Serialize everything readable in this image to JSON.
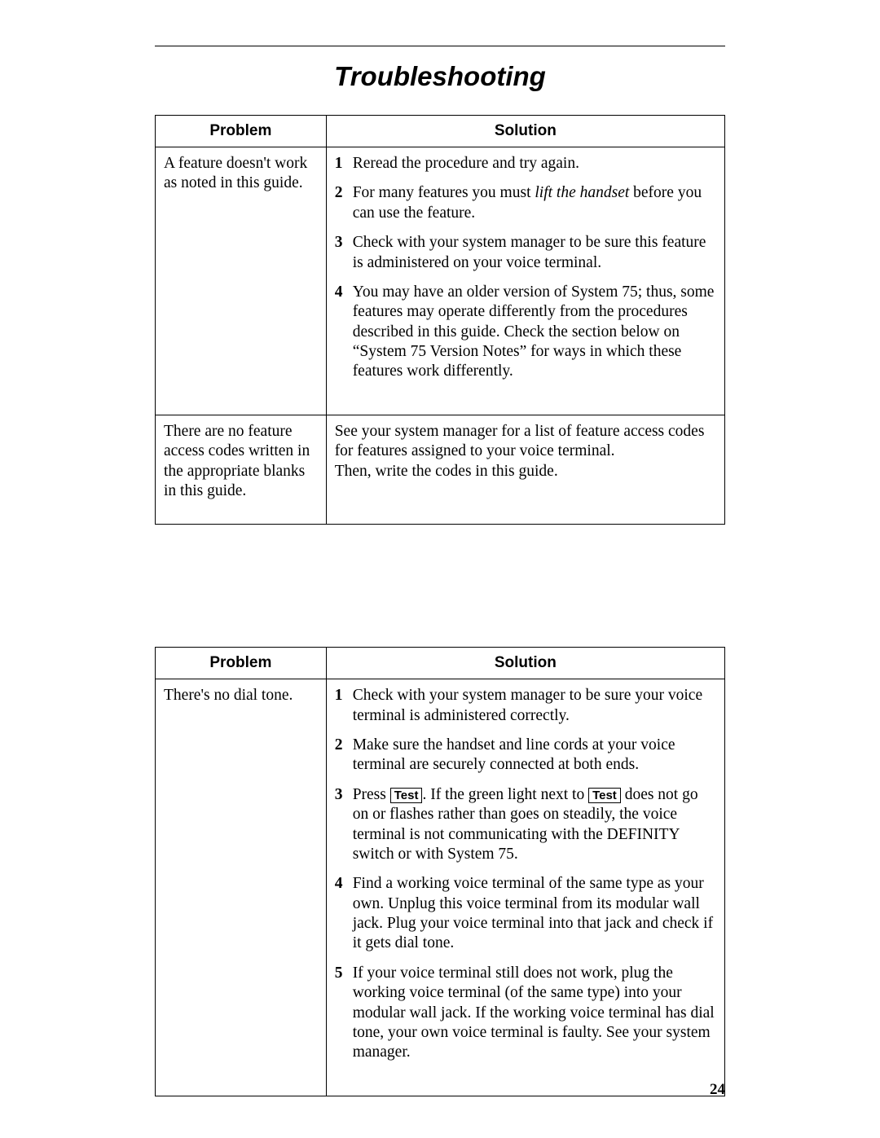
{
  "title": "Troubleshooting",
  "headers": {
    "problem": "Problem",
    "solution": "Solution"
  },
  "test_label": "Test",
  "page_number": "24",
  "table1": {
    "rows": [
      {
        "problem": "A feature doesn't work as noted in this guide.",
        "steps": [
          "Reread the procedure and try again.",
          "For many features you must <i>lift the handset</i> before you can use the feature.",
          "Check with your system manager to be sure this feature is administered on your voice terminal.",
          "You may have an older version of System 75; thus, some features may operate differently from the procedures described in this guide. Check the section below on “System 75 Version Notes” for ways in which these features work differently."
        ]
      },
      {
        "problem": "There are no feature access codes written in the appropriate blanks in this guide.",
        "solution_text": "See your system manager for a list of feature access codes for features assigned to your voice terminal.\nThen, write the codes in this guide."
      }
    ]
  },
  "table2": {
    "rows": [
      {
        "problem": "There's no dial tone.",
        "steps": [
          "Check with your system manager to be sure your voice terminal is administered correctly.",
          "Make sure the handset and line cords at your voice terminal are securely connected at both ends.",
          "Press {{TEST}}. If the green light next to {{TEST}} does not go on or flashes rather than goes on steadily, the voice terminal is not communicating with the DEFINITY switch or with System 75.",
          "Find a working voice terminal of the same type as your own. Unplug this voice terminal from its modular wall jack. Plug your voice terminal into that jack and check if it gets dial tone.",
          "If your voice terminal still does not work, plug the working voice terminal (of the same type) into your modular wall jack. If the working voice terminal has dial tone, your own voice terminal is faulty. See your system manager."
        ]
      }
    ]
  }
}
